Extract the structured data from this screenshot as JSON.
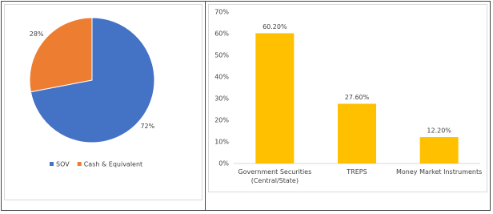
{
  "chart_data": [
    {
      "type": "pie",
      "categories": [
        "SOV",
        "Cash & Equivalent"
      ],
      "values": [
        72,
        28
      ],
      "value_labels": [
        "72%",
        "28%"
      ],
      "colors": [
        "#4472c4",
        "#ed7d31"
      ],
      "legend": "bottom"
    },
    {
      "type": "bar",
      "categories": [
        "Government Securities (Central/State)",
        "TREPS",
        "Money Market Instruments"
      ],
      "values": [
        60.2,
        27.6,
        12.2
      ],
      "value_labels": [
        "60.20%",
        "27.60%",
        "12.20%"
      ],
      "color": "#ffc000",
      "ylim": [
        0,
        70
      ],
      "yticks": [
        {
          "value": 0,
          "label": "0%"
        },
        {
          "value": 10,
          "label": "10%"
        },
        {
          "value": 20,
          "label": "20%"
        },
        {
          "value": 30,
          "label": "30%"
        },
        {
          "value": 40,
          "label": "40%"
        },
        {
          "value": 50,
          "label": "50%"
        },
        {
          "value": 60,
          "label": "60%"
        },
        {
          "value": 70,
          "label": "70%"
        }
      ],
      "grid": false
    }
  ]
}
